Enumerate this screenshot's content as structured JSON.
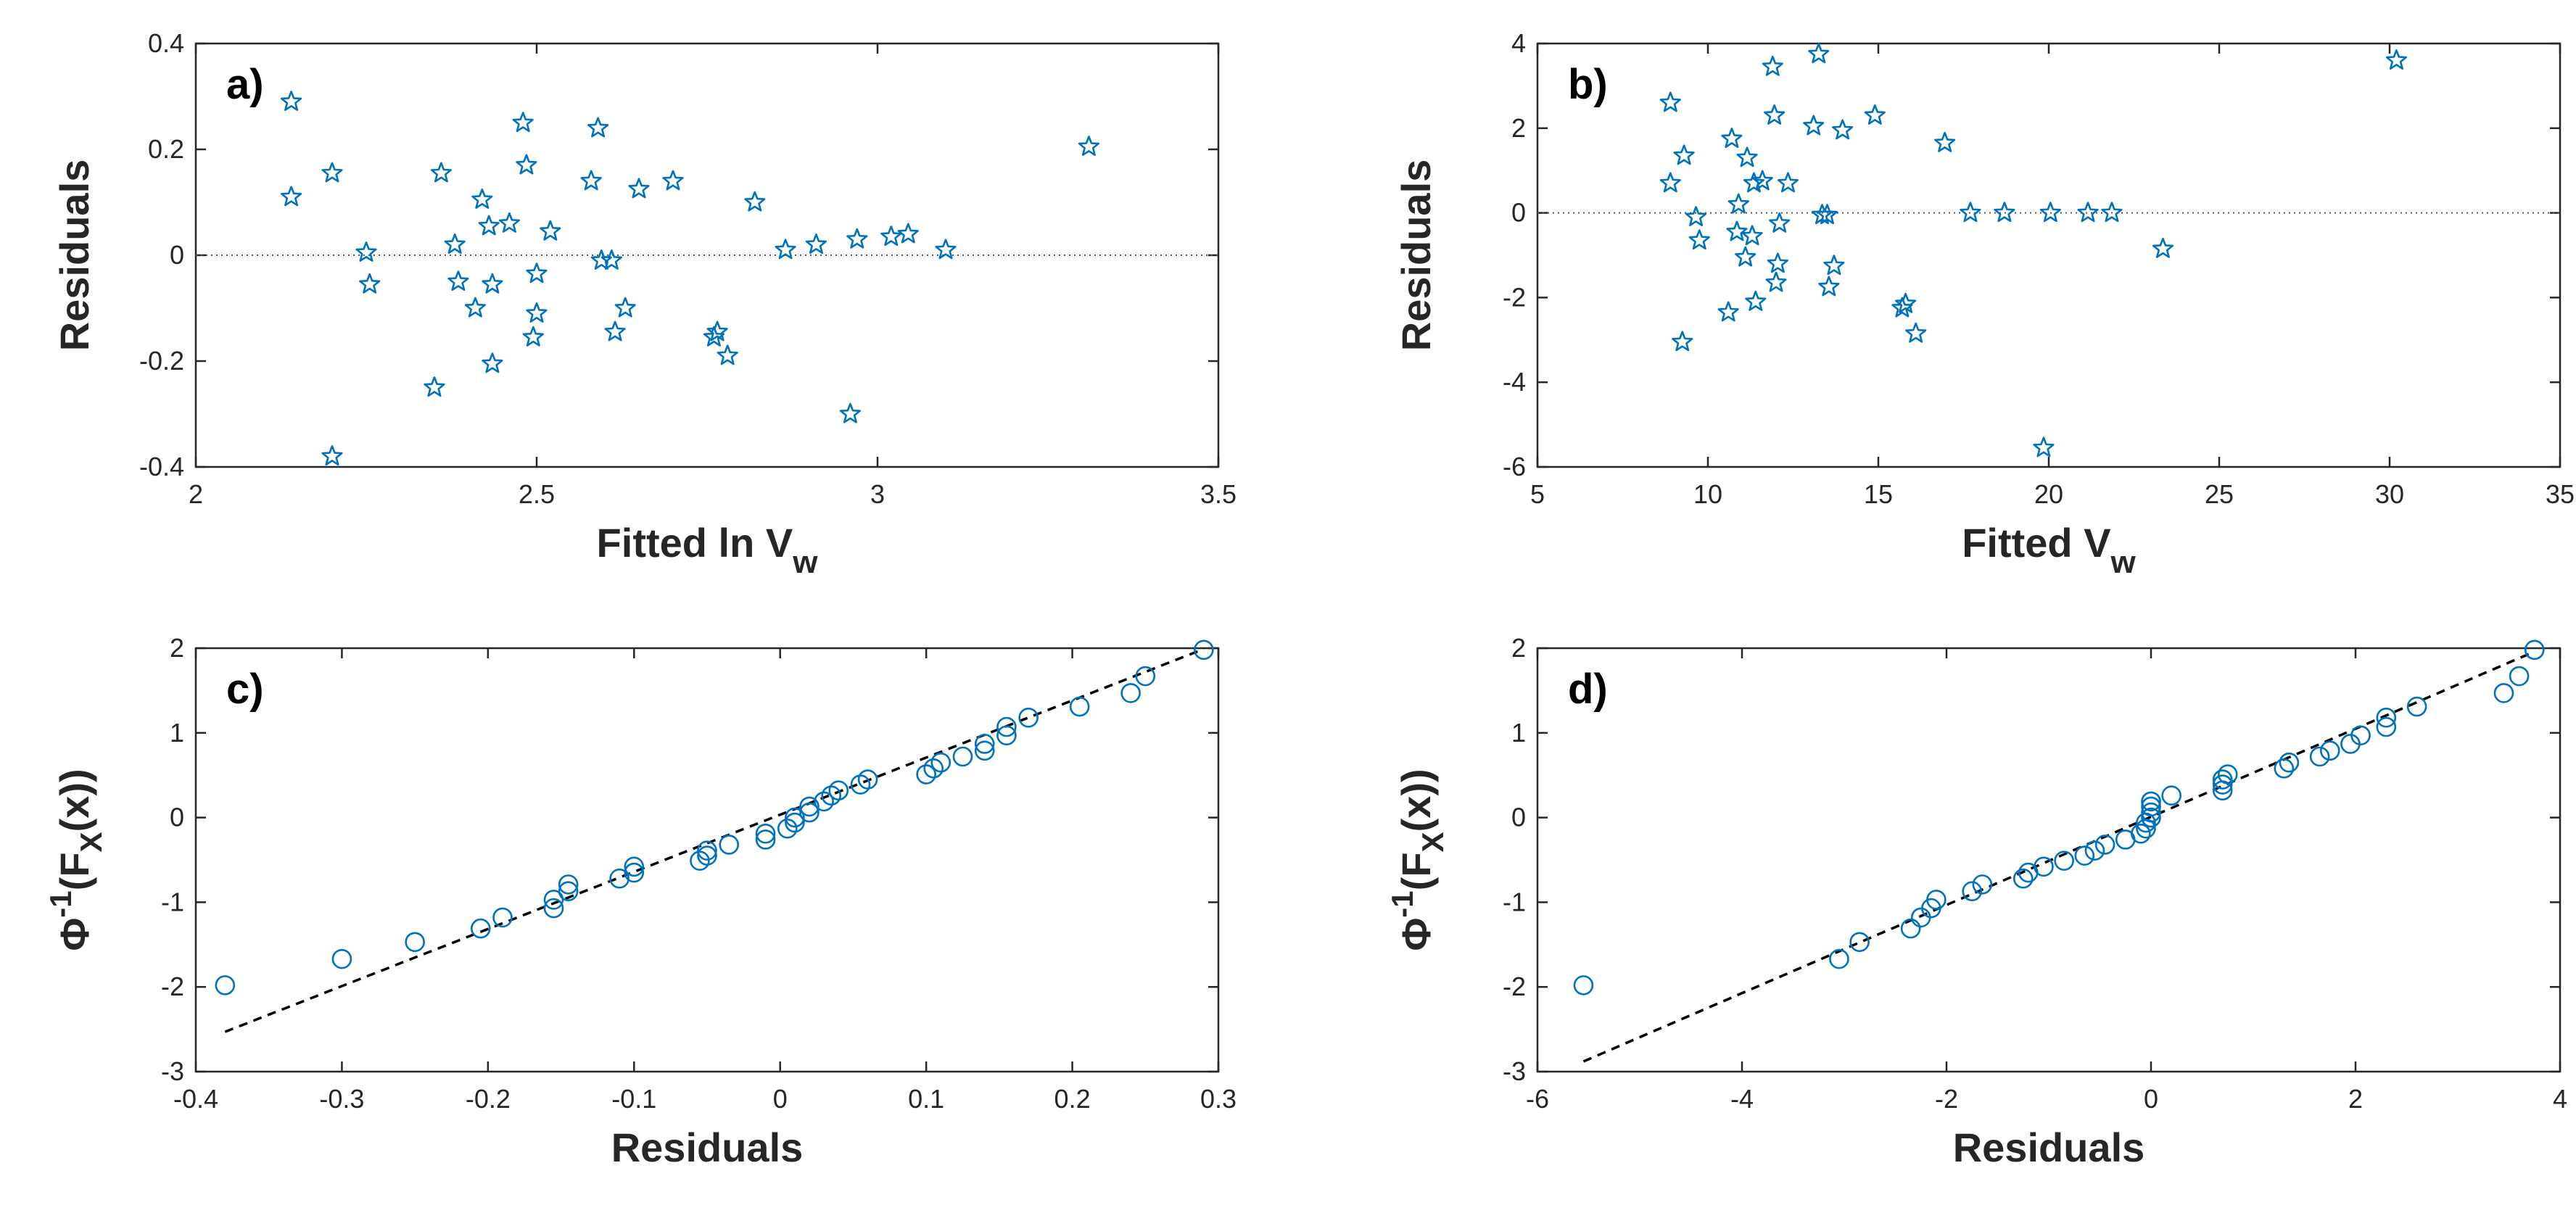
{
  "colors": {
    "marker": "#0072BD",
    "axis": "#262626",
    "refline": "#000000"
  },
  "chart_data": [
    {
      "id": "a",
      "type": "scatter",
      "panel_label": "a)",
      "xlabel": "Fitted ln V",
      "xlabel_sub": "w",
      "ylabel": "Residuals",
      "xlim": [
        2,
        3.5
      ],
      "ylim": [
        -0.4,
        0.4
      ],
      "xticks": [
        "2",
        "2.5",
        "3",
        "3.5"
      ],
      "yticks": [
        "-0.4",
        "-0.2",
        "0",
        "0.2",
        "0.4"
      ],
      "xtick_values": [
        2,
        2.5,
        3,
        3.5
      ],
      "ytick_values": [
        -0.4,
        -0.2,
        0,
        0.2,
        0.4
      ],
      "marker": "star",
      "reference_line": {
        "style": "dotted",
        "y": 0
      },
      "points": [
        [
          2.14,
          0.29
        ],
        [
          2.14,
          0.11
        ],
        [
          2.2,
          0.155
        ],
        [
          2.2,
          -0.38
        ],
        [
          2.25,
          0.005
        ],
        [
          2.255,
          -0.055
        ],
        [
          2.35,
          -0.25
        ],
        [
          2.36,
          0.155
        ],
        [
          2.38,
          0.02
        ],
        [
          2.385,
          -0.05
        ],
        [
          2.41,
          -0.1
        ],
        [
          2.42,
          0.105
        ],
        [
          2.43,
          0.055
        ],
        [
          2.435,
          -0.055
        ],
        [
          2.435,
          -0.205
        ],
        [
          2.46,
          0.06
        ],
        [
          2.48,
          0.25
        ],
        [
          2.485,
          0.17
        ],
        [
          2.495,
          -0.155
        ],
        [
          2.5,
          -0.11
        ],
        [
          2.5,
          -0.035
        ],
        [
          2.52,
          0.045
        ],
        [
          2.58,
          0.14
        ],
        [
          2.59,
          0.24
        ],
        [
          2.595,
          -0.01
        ],
        [
          2.61,
          -0.01
        ],
        [
          2.615,
          -0.145
        ],
        [
          2.63,
          -0.1
        ],
        [
          2.65,
          0.125
        ],
        [
          2.7,
          0.14
        ],
        [
          2.76,
          -0.155
        ],
        [
          2.765,
          -0.145
        ],
        [
          2.78,
          -0.19
        ],
        [
          2.82,
          0.1
        ],
        [
          2.865,
          0.01
        ],
        [
          2.91,
          0.02
        ],
        [
          2.96,
          -0.3
        ],
        [
          2.97,
          0.03
        ],
        [
          3.02,
          0.035
        ],
        [
          3.045,
          0.04
        ],
        [
          3.1,
          0.01
        ],
        [
          3.31,
          0.205
        ]
      ]
    },
    {
      "id": "b",
      "type": "scatter",
      "panel_label": "b)",
      "xlabel": "Fitted V",
      "xlabel_sub": "w",
      "ylabel": "Residuals",
      "xlim": [
        5,
        35
      ],
      "ylim": [
        -6,
        4
      ],
      "xticks": [
        "5",
        "10",
        "15",
        "20",
        "25",
        "30",
        "35"
      ],
      "yticks": [
        "-6",
        "-4",
        "-2",
        "0",
        "2",
        "4"
      ],
      "xtick_values": [
        5,
        10,
        15,
        20,
        25,
        30,
        35
      ],
      "ytick_values": [
        -6,
        -4,
        -2,
        0,
        2,
        4
      ],
      "marker": "star",
      "reference_line": {
        "style": "dotted",
        "y": 0
      },
      "points": [
        [
          8.9,
          2.6
        ],
        [
          8.9,
          0.7
        ],
        [
          9.25,
          -3.05
        ],
        [
          9.3,
          1.35
        ],
        [
          9.65,
          -0.1
        ],
        [
          9.75,
          -0.65
        ],
        [
          10.6,
          -2.35
        ],
        [
          10.7,
          1.75
        ],
        [
          10.85,
          -0.45
        ],
        [
          10.9,
          0.2
        ],
        [
          11.1,
          -1.05
        ],
        [
          11.15,
          1.3
        ],
        [
          11.3,
          -0.55
        ],
        [
          11.35,
          0.7
        ],
        [
          11.4,
          -2.1
        ],
        [
          11.6,
          0.75
        ],
        [
          11.9,
          3.45
        ],
        [
          11.95,
          2.3
        ],
        [
          12.0,
          -1.65
        ],
        [
          12.05,
          -1.2
        ],
        [
          12.1,
          -0.25
        ],
        [
          12.35,
          0.7
        ],
        [
          13.1,
          2.05
        ],
        [
          13.25,
          3.75
        ],
        [
          13.35,
          -0.05
        ],
        [
          13.5,
          -0.05
        ],
        [
          13.55,
          -1.75
        ],
        [
          13.7,
          -1.25
        ],
        [
          13.95,
          1.95
        ],
        [
          14.9,
          2.3
        ],
        [
          15.7,
          -2.25
        ],
        [
          15.8,
          -2.15
        ],
        [
          16.1,
          -2.85
        ],
        [
          16.95,
          1.65
        ],
        [
          17.7,
          0.0
        ],
        [
          18.7,
          0.0
        ],
        [
          19.85,
          -5.55
        ],
        [
          20.05,
          0.0
        ],
        [
          21.15,
          0.0
        ],
        [
          21.85,
          0.0
        ],
        [
          23.35,
          -0.85
        ],
        [
          30.2,
          3.6
        ]
      ]
    },
    {
      "id": "c",
      "type": "scatter",
      "panel_label": "c)",
      "xlabel": "Residuals",
      "ylabel_pre": "Φ",
      "ylabel_sup": "-1",
      "ylabel_mid": "(F",
      "ylabel_sub": "X",
      "ylabel_post": "(x))",
      "xlim": [
        -0.4,
        0.3
      ],
      "ylim": [
        -3,
        2
      ],
      "xticks": [
        "-0.4",
        "-0.3",
        "-0.2",
        "-0.1",
        "0",
        "0.1",
        "0.2",
        "0.3"
      ],
      "yticks": [
        "-3",
        "-2",
        "-1",
        "0",
        "1",
        "2"
      ],
      "xtick_values": [
        -0.4,
        -0.3,
        -0.2,
        -0.1,
        0,
        0.1,
        0.2,
        0.3
      ],
      "ytick_values": [
        -3,
        -2,
        -1,
        0,
        1,
        2
      ],
      "marker": "circle",
      "fit_line": {
        "style": "dashed",
        "from": [
          -0.38,
          -2.53
        ],
        "to": [
          0.29,
          1.99
        ]
      },
      "points": [
        [
          -0.38,
          -1.98
        ],
        [
          -0.3,
          -1.67
        ],
        [
          -0.25,
          -1.47
        ],
        [
          -0.205,
          -1.31
        ],
        [
          -0.19,
          -1.18
        ],
        [
          -0.155,
          -1.07
        ],
        [
          -0.155,
          -0.97
        ],
        [
          -0.145,
          -0.87
        ],
        [
          -0.145,
          -0.79
        ],
        [
          -0.11,
          -0.72
        ],
        [
          -0.1,
          -0.65
        ],
        [
          -0.1,
          -0.58
        ],
        [
          -0.055,
          -0.51
        ],
        [
          -0.05,
          -0.45
        ],
        [
          -0.05,
          -0.39
        ],
        [
          -0.035,
          -0.32
        ],
        [
          -0.01,
          -0.26
        ],
        [
          -0.01,
          -0.19
        ],
        [
          0.005,
          -0.13
        ],
        [
          0.01,
          -0.06
        ],
        [
          0.01,
          0.0
        ],
        [
          0.02,
          0.06
        ],
        [
          0.02,
          0.13
        ],
        [
          0.03,
          0.19
        ],
        [
          0.035,
          0.26
        ],
        [
          0.04,
          0.32
        ],
        [
          0.055,
          0.39
        ],
        [
          0.06,
          0.45
        ],
        [
          0.1,
          0.51
        ],
        [
          0.105,
          0.58
        ],
        [
          0.11,
          0.65
        ],
        [
          0.125,
          0.72
        ],
        [
          0.14,
          0.79
        ],
        [
          0.14,
          0.87
        ],
        [
          0.155,
          0.97
        ],
        [
          0.155,
          1.07
        ],
        [
          0.17,
          1.18
        ],
        [
          0.205,
          1.31
        ],
        [
          0.24,
          1.47
        ],
        [
          0.25,
          1.67
        ],
        [
          0.29,
          1.98
        ]
      ]
    },
    {
      "id": "d",
      "type": "scatter",
      "panel_label": "d)",
      "xlabel": "Residuals",
      "ylabel_pre": "Φ",
      "ylabel_sup": "-1",
      "ylabel_mid": "(F",
      "ylabel_sub": "X",
      "ylabel_post": "(x))",
      "xlim": [
        -6,
        4
      ],
      "ylim": [
        -3,
        2
      ],
      "xticks": [
        "-6",
        "-4",
        "-2",
        "0",
        "2",
        "4"
      ],
      "yticks": [
        "-3",
        "-2",
        "-1",
        "0",
        "1",
        "2"
      ],
      "xtick_values": [
        -6,
        -4,
        -2,
        0,
        2,
        4
      ],
      "ytick_values": [
        -3,
        -2,
        -1,
        0,
        1,
        2
      ],
      "marker": "circle",
      "fit_line": {
        "style": "dashed",
        "from": [
          -5.55,
          -2.88
        ],
        "to": [
          3.75,
          1.96
        ]
      },
      "points": [
        [
          -5.55,
          -1.98
        ],
        [
          -3.05,
          -1.67
        ],
        [
          -2.85,
          -1.47
        ],
        [
          -2.35,
          -1.31
        ],
        [
          -2.25,
          -1.18
        ],
        [
          -2.15,
          -1.07
        ],
        [
          -2.1,
          -0.97
        ],
        [
          -1.75,
          -0.87
        ],
        [
          -1.65,
          -0.79
        ],
        [
          -1.25,
          -0.72
        ],
        [
          -1.2,
          -0.65
        ],
        [
          -1.05,
          -0.58
        ],
        [
          -0.85,
          -0.51
        ],
        [
          -0.65,
          -0.45
        ],
        [
          -0.55,
          -0.39
        ],
        [
          -0.45,
          -0.32
        ],
        [
          -0.25,
          -0.26
        ],
        [
          -0.1,
          -0.19
        ],
        [
          -0.05,
          -0.13
        ],
        [
          -0.05,
          -0.06
        ],
        [
          0.0,
          0.0
        ],
        [
          0.0,
          0.06
        ],
        [
          0.0,
          0.13
        ],
        [
          0.0,
          0.19
        ],
        [
          0.2,
          0.26
        ],
        [
          0.7,
          0.32
        ],
        [
          0.7,
          0.39
        ],
        [
          0.7,
          0.45
        ],
        [
          0.75,
          0.51
        ],
        [
          1.3,
          0.58
        ],
        [
          1.35,
          0.65
        ],
        [
          1.65,
          0.72
        ],
        [
          1.75,
          0.79
        ],
        [
          1.95,
          0.87
        ],
        [
          2.05,
          0.97
        ],
        [
          2.3,
          1.07
        ],
        [
          2.3,
          1.18
        ],
        [
          2.6,
          1.31
        ],
        [
          3.45,
          1.47
        ],
        [
          3.6,
          1.67
        ],
        [
          3.75,
          1.98
        ]
      ]
    }
  ]
}
